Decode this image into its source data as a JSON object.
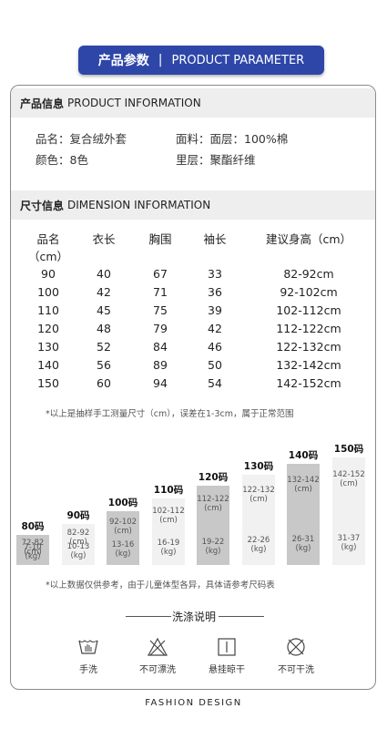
{
  "banner": {
    "title_cn": "产品参数",
    "separator": "|",
    "title_en": "PRODUCT PARAMETER"
  },
  "product_info": {
    "header_cn": "产品信息",
    "header_en": "PRODUCT INFORMATION",
    "name": "品名：复合绒外套",
    "color": "颜色：8色",
    "fabric": "面料：面层：100%棉",
    "lining": "里层：聚酯纤维"
  },
  "dimension_info": {
    "header_cn": "尺寸信息",
    "header_en": "DIMENSION INFORMATION",
    "columns": [
      "品名（cm）",
      "衣长",
      "胸围",
      "袖长",
      "建议身高（cm）"
    ],
    "rows": [
      [
        "90",
        "40",
        "67",
        "33",
        "82-92cm"
      ],
      [
        "100",
        "42",
        "71",
        "36",
        "92-102cm"
      ],
      [
        "110",
        "45",
        "75",
        "39",
        "102-112cm"
      ],
      [
        "120",
        "48",
        "79",
        "42",
        "112-122cm"
      ],
      [
        "130",
        "52",
        "84",
        "46",
        "122-132cm"
      ],
      [
        "140",
        "56",
        "89",
        "50",
        "132-142cm"
      ],
      [
        "150",
        "60",
        "94",
        "54",
        "142-152cm"
      ]
    ],
    "note_measure": "*以上是抽样手工测量尺寸（cm），误差在1-3cm，属于正常范围"
  },
  "size_chart": {
    "bars": [
      {
        "label": "80码",
        "height_range": "72-82",
        "unit1": "(cm)",
        "weight_range": "7-10",
        "unit2": "(kg)",
        "color": "#c8c8c8",
        "level": 0.28
      },
      {
        "label": "90码",
        "height_range": "82-92",
        "unit1": "(cm)",
        "weight_range": "10-13",
        "unit2": "(kg)",
        "color": "#f1f1f1",
        "level": 0.38
      },
      {
        "label": "100码",
        "height_range": "92-102",
        "unit1": "(cm)",
        "weight_range": "13-16",
        "unit2": "(kg)",
        "color": "#c8c8c8",
        "level": 0.5
      },
      {
        "label": "110码",
        "height_range": "102-112",
        "unit1": "(cm)",
        "weight_range": "16-19",
        "unit2": "(kg)",
        "color": "#f1f1f1",
        "level": 0.62
      },
      {
        "label": "120码",
        "height_range": "112-122",
        "unit1": "(cm)",
        "weight_range": "19-22",
        "unit2": "(kg)",
        "color": "#c8c8c8",
        "level": 0.74
      },
      {
        "label": "130码",
        "height_range": "122-132",
        "unit1": "(cm)",
        "weight_range": "22-26",
        "unit2": "(kg)",
        "color": "#f1f1f1",
        "level": 0.84
      },
      {
        "label": "140码",
        "height_range": "132-142",
        "unit1": "(cm)",
        "weight_range": "26-31",
        "unit2": "(kg)",
        "color": "#c8c8c8",
        "level": 0.94
      },
      {
        "label": "150码",
        "height_range": "142-152",
        "unit1": "(cm)",
        "weight_range": "31-37",
        "unit2": "(kg)",
        "color": "#f1f1f1",
        "level": 1.0
      }
    ],
    "note_reference": "*以上数据仅供参考，由于儿童体型各异，具体请参考尺码表"
  },
  "wash": {
    "title": "洗涤说明",
    "items": [
      {
        "icon": "hand-wash-icon",
        "label": "手洗"
      },
      {
        "icon": "no-bleach-icon",
        "label": "不可漂洗"
      },
      {
        "icon": "hang-dry-icon",
        "label": "悬挂晾干"
      },
      {
        "icon": "no-dry-clean-icon",
        "label": "不可干洗"
      }
    ]
  },
  "footer": {
    "text": "FASHION  DESIGN"
  }
}
